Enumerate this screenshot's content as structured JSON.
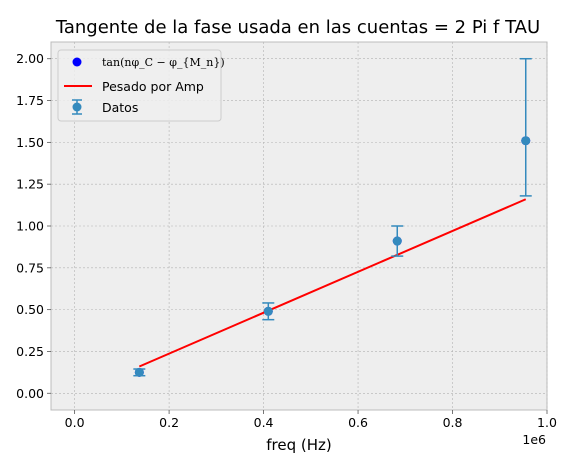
{
  "chart_data": {
    "type": "scatter",
    "title": "Tangente de la fase usada en las cuentas = 2 Pi f TAU",
    "xlabel": "freq (Hz)",
    "ylabel": "",
    "x_offset_label": "1e6",
    "xlim": [
      -0.05,
      1.0
    ],
    "ylim": [
      -0.1,
      2.1
    ],
    "x_ticks": [
      0.0,
      0.2,
      0.4,
      0.6,
      0.8,
      1.0
    ],
    "x_tick_labels": [
      "0.0",
      "0.2",
      "0.4",
      "0.6",
      "0.8",
      "1.0"
    ],
    "y_ticks": [
      0.0,
      0.25,
      0.5,
      0.75,
      1.0,
      1.25,
      1.5,
      1.75,
      2.0
    ],
    "y_tick_labels": [
      "0.00",
      "0.25",
      "0.50",
      "0.75",
      "1.00",
      "1.25",
      "1.50",
      "1.75",
      "2.00"
    ],
    "grid": true,
    "legend_position": "top-left",
    "series": [
      {
        "name": "tan(nφ_C − φ_{M_n})",
        "kind": "scatter",
        "color": "#0000ff",
        "x": [
          0.137,
          0.41,
          0.683,
          0.955
        ],
        "y": [
          0.125,
          0.49,
          0.91,
          1.51
        ]
      },
      {
        "name": "Pesado por Amp",
        "kind": "line",
        "color": "#ff0000",
        "x": [
          0.137,
          0.955
        ],
        "y": [
          0.16,
          1.16
        ]
      },
      {
        "name": "Datos",
        "kind": "errorbar",
        "color": "#348abd",
        "x": [
          0.137,
          0.41,
          0.683,
          0.955
        ],
        "y": [
          0.125,
          0.49,
          0.91,
          1.51
        ],
        "yerr_low": [
          0.02,
          0.05,
          0.09,
          0.33
        ],
        "yerr_high": [
          0.02,
          0.05,
          0.09,
          0.49
        ]
      }
    ]
  }
}
